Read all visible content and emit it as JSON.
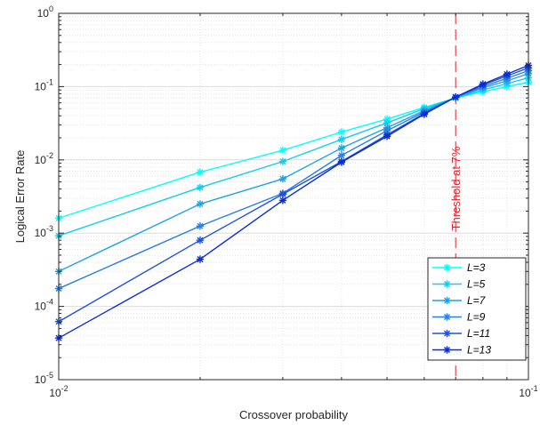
{
  "chart_data": {
    "type": "line",
    "xscale": "log",
    "yscale": "log",
    "xlabel": "Crossover probability",
    "ylabel": "Logical Error Rate",
    "xlim": [
      0.01,
      0.1
    ],
    "ylim": [
      1e-05,
      1
    ],
    "grid": true,
    "legend_position": "bottom-right",
    "x_ticks": [
      {
        "value": 0.01,
        "base": "10",
        "exp": "-2"
      },
      {
        "value": 0.1,
        "base": "10",
        "exp": "-1"
      }
    ],
    "y_ticks": [
      {
        "value": 1,
        "base": "10",
        "exp": "0"
      },
      {
        "value": 0.1,
        "base": "10",
        "exp": "-1"
      },
      {
        "value": 0.01,
        "base": "10",
        "exp": "-2"
      },
      {
        "value": 0.001,
        "base": "10",
        "exp": "-3"
      },
      {
        "value": 0.0001,
        "base": "10",
        "exp": "-4"
      },
      {
        "value": 1e-05,
        "base": "10",
        "exp": "-5"
      }
    ],
    "x": [
      0.01,
      0.02,
      0.03,
      0.04,
      0.05,
      0.06,
      0.07,
      0.08,
      0.09,
      0.1
    ],
    "series": [
      {
        "name": "L=3",
        "color": "#00ffff",
        "values": [
          0.0016,
          0.0068,
          0.0135,
          0.024,
          0.036,
          0.052,
          0.07,
          0.085,
          0.1,
          0.115
        ]
      },
      {
        "name": "L=5",
        "color": "#14ccee",
        "values": [
          0.00092,
          0.0042,
          0.0095,
          0.019,
          0.032,
          0.05,
          0.07,
          0.09,
          0.11,
          0.132
        ]
      },
      {
        "name": "L=7",
        "color": "#1fa2e6",
        "values": [
          0.0003,
          0.0025,
          0.0055,
          0.0145,
          0.0275,
          0.047,
          0.071,
          0.096,
          0.12,
          0.15
        ]
      },
      {
        "name": "L=9",
        "color": "#2a80e0",
        "values": [
          0.000175,
          0.00125,
          0.0035,
          0.0115,
          0.025,
          0.045,
          0.072,
          0.1,
          0.13,
          0.165
        ]
      },
      {
        "name": "L=11",
        "color": "#2050dd",
        "values": [
          6.2e-05,
          0.0008,
          0.0034,
          0.0095,
          0.022,
          0.043,
          0.072,
          0.105,
          0.14,
          0.18
        ]
      },
      {
        "name": "L=13",
        "color": "#0a2bd8",
        "values": [
          3.7e-05,
          0.00044,
          0.0028,
          0.0093,
          0.021,
          0.042,
          0.072,
          0.108,
          0.148,
          0.195
        ]
      }
    ],
    "threshold": {
      "x": 0.07,
      "label": "Threshold at 7%",
      "color": "#e0262e"
    }
  }
}
